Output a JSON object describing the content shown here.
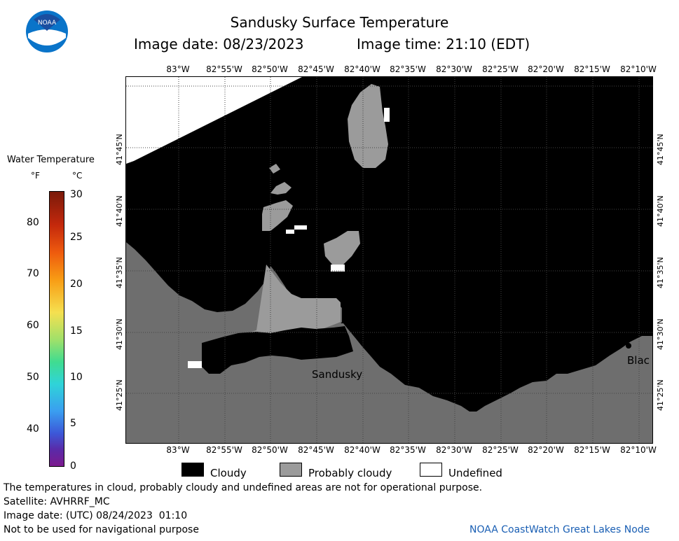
{
  "header": {
    "title": "Sandusky Surface Temperature",
    "image_date_label": "Image date: 08/23/2023",
    "image_time_label": "Image time: 21:10 (EDT)",
    "logo_text": "NOAA"
  },
  "colorbar": {
    "title": "Water Temperature",
    "unit_f": "°F",
    "unit_c": "°C",
    "f_ticks": [
      "80",
      "70",
      "60",
      "50",
      "40"
    ],
    "c_ticks": [
      "30",
      "25",
      "20",
      "15",
      "10",
      "5",
      "0"
    ]
  },
  "map": {
    "lon_labels": [
      "83°W",
      "82°55'W",
      "82°50'W",
      "82°45'W",
      "82°40'W",
      "82°35'W",
      "82°30'W",
      "82°25'W",
      "82°20'W",
      "82°15'W",
      "82°10'W"
    ],
    "lat_labels": [
      "41°45'N",
      "41°40'N",
      "41°35'N",
      "41°30'N",
      "41°25'N"
    ],
    "place_labels": {
      "sandusky": "Sandusky",
      "blac": "Blac"
    }
  },
  "legend": {
    "cloudy": "Cloudy",
    "probably_cloudy": "Probably cloudy",
    "undefined": "Undefined",
    "colors": {
      "cloudy": "#000000",
      "probably_cloudy": "#9b9b9b",
      "land": "#6e6e6e",
      "undefined": "#ffffff"
    }
  },
  "footer": {
    "disclaimer": "The temperatures in cloud, probably cloudy and undefined areas are not for operational purpose.",
    "satellite": "Satellite: AVHRRF_MC",
    "utc_date": "Image date: (UTC) 08/24/2023  01:10",
    "nav_warning": "Not to be used for navigational purpose",
    "credit": "NOAA CoastWatch Great Lakes Node"
  }
}
